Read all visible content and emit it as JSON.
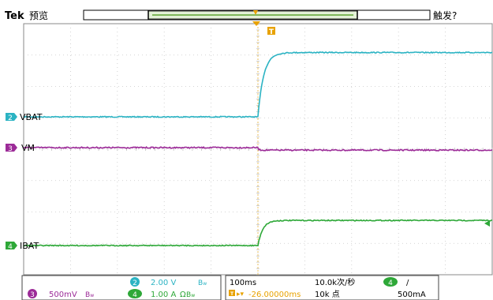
{
  "header": {
    "brand": "Tek",
    "mode": "预览",
    "status": "触发?"
  },
  "markers": {
    "trigger_label": "T"
  },
  "colors": {
    "ch1": "#2bb3c3",
    "ch2": "#2bb3c3",
    "ch3": "#9c2b98",
    "ch4": "#2ea838",
    "trigger": "#e8a200",
    "grid": "#c8c8c8",
    "background": "#ffffff"
  },
  "chart_data": {
    "type": "line",
    "title": "",
    "x_unit": "ms",
    "x_range": [
      -500,
      500
    ],
    "trigger_time": 0,
    "grid": true,
    "divisions": {
      "x": 10,
      "y": 8
    },
    "series": [
      {
        "name": "VBAT",
        "channel": 2,
        "color": "#2bb3c3",
        "baseline_div": 0,
        "values_div_pre_trigger": 0,
        "values_div_post_trigger_final": 2.05,
        "rise_tau_ms": 12
      },
      {
        "name": "VM",
        "channel": 3,
        "color": "#9c2b98",
        "baseline_div": 0,
        "values_div_pre_trigger": 0,
        "values_div_post_trigger_final": -0.08,
        "rise_tau_ms": 2
      },
      {
        "name": "IBAT",
        "channel": 4,
        "color": "#2ea838",
        "baseline_div": 0,
        "values_div_pre_trigger": 0,
        "values_div_post_trigger_final": 0.8,
        "rise_tau_ms": 10
      }
    ]
  },
  "readout": {
    "ch3_scale": "500mV",
    "ch2_scale": "2.00 V",
    "ch4_scale": "1.00 A",
    "ch2_num": "2",
    "ch3_num": "3",
    "ch4_num": "4",
    "omega": "Ω",
    "timebase": "100ms",
    "sample_rate": "10.0k次/秒",
    "position": "-26.00000ms",
    "record_length": "10k 点",
    "trig_source": "4",
    "trig_slope": "/",
    "trig_level": "500mA"
  }
}
